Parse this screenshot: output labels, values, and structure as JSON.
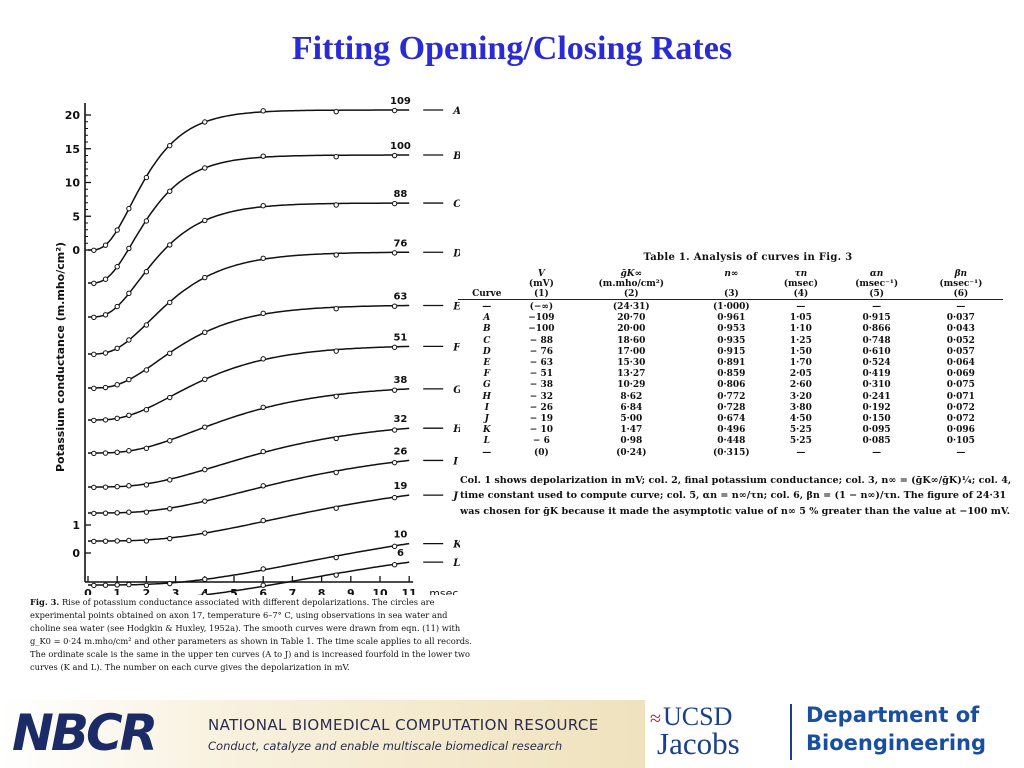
{
  "slide": {
    "title": "Fitting Opening/Closing Rates"
  },
  "chart_data": {
    "type": "line",
    "ylabel": "Potassium conductance (m.mho/cm²)",
    "xlabel": "msec",
    "x_ticks": [
      "0",
      "1",
      "2",
      "3",
      "4",
      "5",
      "6",
      "7",
      "8",
      "9",
      "10",
      "11"
    ],
    "y_ticks_upper": [
      "0",
      "5",
      "10",
      "15",
      "20"
    ],
    "y_ticks_lower": [
      "0",
      "1"
    ],
    "xlim": [
      0,
      11
    ],
    "series": [
      {
        "curve": "A",
        "depol": "109",
        "g_inf": 20.7,
        "tau": 1.05
      },
      {
        "curve": "B",
        "depol": "100",
        "g_inf": 20.0,
        "tau": 1.1
      },
      {
        "curve": "C",
        "depol": "88",
        "g_inf": 18.6,
        "tau": 1.25
      },
      {
        "curve": "D",
        "depol": "76",
        "g_inf": 17.0,
        "tau": 1.5
      },
      {
        "curve": "E",
        "depol": "63",
        "g_inf": 15.3,
        "tau": 1.7
      },
      {
        "curve": "F",
        "depol": "51",
        "g_inf": 13.27,
        "tau": 2.05
      },
      {
        "curve": "G",
        "depol": "38",
        "g_inf": 10.29,
        "tau": 2.6
      },
      {
        "curve": "H",
        "depol": "32",
        "g_inf": 8.62,
        "tau": 3.2
      },
      {
        "curve": "I",
        "depol": "26",
        "g_inf": 6.84,
        "tau": 3.8
      },
      {
        "curve": "J",
        "depol": "19",
        "g_inf": 5.0,
        "tau": 4.5
      },
      {
        "curve": "K",
        "depol": "10",
        "g_inf": 1.47,
        "tau": 5.25
      },
      {
        "curve": "L",
        "depol": "6",
        "g_inf": 0.98,
        "tau": 5.25
      }
    ]
  },
  "caption": {
    "label": "Fig. 3.",
    "text": "Rise of potassium conductance associated with different depolarizations. The circles are experimental points obtained on axon 17, temperature 6–7° C, using observations in sea water and choline sea water (see Hodgkin & Huxley, 1952a). The smooth curves were drawn from eqn. (11) with g_K0 = 0·24 m.mho/cm² and other parameters as shown in Table 1. The time scale applies to all records. The ordinate scale is the same in the upper ten curves (A to J) and is increased fourfold in the lower two curves (K and L). The number on each curve gives the depolarization in mV."
  },
  "table": {
    "title": "Table 1. Analysis of curves in Fig. 3",
    "headers": [
      [
        "",
        "V",
        "ḡK∞",
        "n∞",
        "τn",
        "αn",
        "βn"
      ],
      [
        "",
        "(mV)",
        "(m.mho/cm²)",
        "",
        "(msec)",
        "(msec⁻¹)",
        "(msec⁻¹)"
      ],
      [
        "Curve",
        "(1)",
        "(2)",
        "(3)",
        "(4)",
        "(5)",
        "(6)"
      ]
    ],
    "rows": [
      [
        "—",
        "(−∞)",
        "(24·31)",
        "(1·000)",
        "—",
        "—",
        "—"
      ],
      [
        "A",
        "−109",
        "20·70",
        "0·961",
        "1·05",
        "0·915",
        "0·037"
      ],
      [
        "B",
        "−100",
        "20·00",
        "0·953",
        "1·10",
        "0·866",
        "0·043"
      ],
      [
        "C",
        "− 88",
        "18·60",
        "0·935",
        "1·25",
        "0·748",
        "0·052"
      ],
      [
        "D",
        "− 76",
        "17·00",
        "0·915",
        "1·50",
        "0·610",
        "0·057"
      ],
      [
        "E",
        "− 63",
        "15·30",
        "0·891",
        "1·70",
        "0·524",
        "0·064"
      ],
      [
        "F",
        "− 51",
        "13·27",
        "0·859",
        "2·05",
        "0·419",
        "0·069"
      ],
      [
        "G",
        "− 38",
        "10·29",
        "0·806",
        "2·60",
        "0·310",
        "0·075"
      ],
      [
        "H",
        "− 32",
        "8·62",
        "0·772",
        "3·20",
        "0·241",
        "0·071"
      ],
      [
        "I",
        "− 26",
        "6·84",
        "0·728",
        "3·80",
        "0·192",
        "0·072"
      ],
      [
        "J",
        "− 19",
        "5·00",
        "0·674",
        "4·50",
        "0·150",
        "0·072"
      ],
      [
        "K",
        "− 10",
        "1·47",
        "0·496",
        "5·25",
        "0·095",
        "0·096"
      ],
      [
        "L",
        "− 6",
        "0·98",
        "0·448",
        "5·25",
        "0·085",
        "0·105"
      ],
      [
        "—",
        "(0)",
        "(0·24)",
        "(0·315)",
        "—",
        "—",
        "—"
      ]
    ],
    "note": "Col. 1 shows depolarization in mV; col. 2, final potassium conductance; col. 3, n∞ = (ḡK∞/ḡK)¼; col. 4, time constant used to compute curve; col. 5, αn = n∞/τn; col. 6, βn = (1 − n∞)/τn. The figure of 24·31 was chosen for ḡK because it made the asymptotic value of n∞ 5 % greater than the value at −100 mV."
  },
  "footer": {
    "nbcr_logo": "NBCR",
    "nbcr_name": "NATIONAL BIOMEDICAL COMPUTATION RESOURCE",
    "nbcr_tagline": "Conduct, catalyze and enable multiscale biomedical research",
    "ucsd": "UCSD",
    "jacobs": "Jacobs",
    "dept_line1": "Department of",
    "dept_line2": "Bioengineering",
    "colors": {
      "title": "#2b2bd6",
      "ucsd_blue": "#1a3f8f",
      "ucsd_red": "#c8102e"
    }
  }
}
